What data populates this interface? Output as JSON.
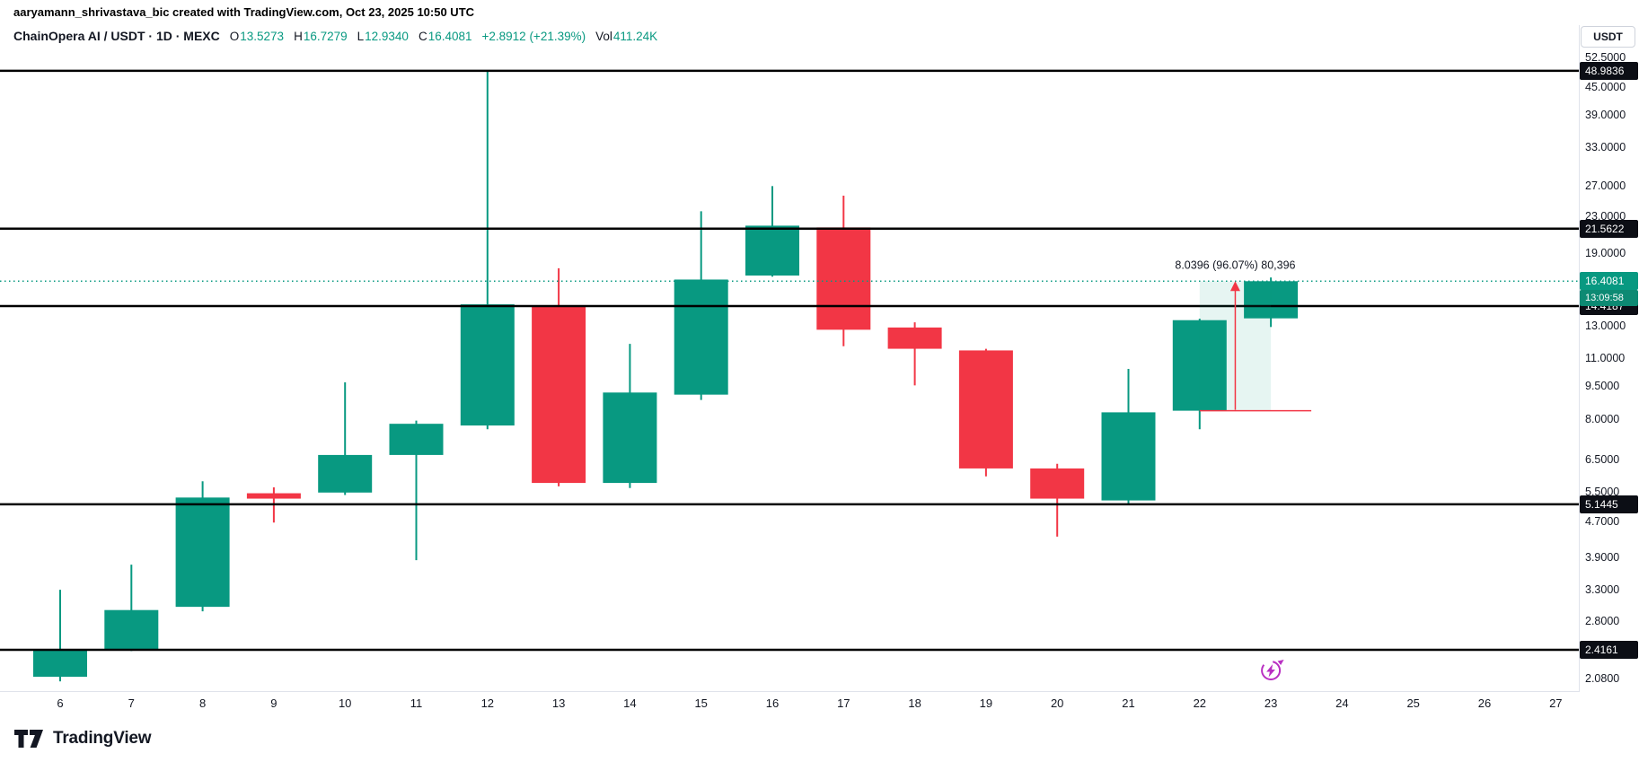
{
  "header": {
    "attribution": "aaryamann_shrivastava_bic created with TradingView.com, Oct 23, 2025 10:50 UTC",
    "symbol_title": "ChainOpera AI / USDT · 1D · MEXC",
    "ohlc": {
      "o_label": "O",
      "o_value": "13.5273",
      "h_label": "H",
      "h_value": "16.7279",
      "l_label": "L",
      "l_value": "12.9340",
      "c_label": "C",
      "c_value": "16.4081",
      "change": "+2.8912 (+21.39%)",
      "vol_label": "Vol",
      "vol_value": "411.24K"
    }
  },
  "price_axis": {
    "currency_label": "USDT",
    "ticks": [
      "52.5000",
      "45.0000",
      "39.0000",
      "33.0000",
      "27.0000",
      "23.0000",
      "19.0000",
      "13.0000",
      "11.0000",
      "9.5000",
      "8.0000",
      "6.5000",
      "5.5000",
      "4.7000",
      "3.9000",
      "3.3000",
      "2.8000",
      "2.0800"
    ],
    "level_badges": [
      "48.9836",
      "21.5622",
      "14.4187",
      "5.1445",
      "2.4161"
    ],
    "current_price_badge": "16.4081",
    "countdown": "13:09:58"
  },
  "time_axis": {
    "labels": [
      "6",
      "7",
      "8",
      "9",
      "10",
      "11",
      "12",
      "13",
      "14",
      "15",
      "16",
      "17",
      "18",
      "19",
      "20",
      "21",
      "22",
      "23",
      "24",
      "25",
      "26",
      "27"
    ]
  },
  "chart_data": {
    "type": "candlestick",
    "title": "ChainOpera AI / USDT · 1D · MEXC",
    "symbol": "ChainOpera AI / USDT",
    "interval": "1D",
    "exchange": "MEXC",
    "ylabel": "USDT",
    "y_scale": "log",
    "ylim": [
      1.949,
      62.1
    ],
    "x_visible_range": [
      6,
      27
    ],
    "grid": false,
    "candles": [
      {
        "date": 6,
        "o": 2.1,
        "h": 3.3,
        "l": 2.05,
        "c": 2.42
      },
      {
        "date": 7,
        "o": 2.42,
        "h": 3.76,
        "l": 2.4,
        "c": 2.97
      },
      {
        "date": 8,
        "o": 3.02,
        "h": 5.8,
        "l": 2.95,
        "c": 5.33
      },
      {
        "date": 9,
        "o": 5.45,
        "h": 5.62,
        "l": 4.68,
        "c": 5.3
      },
      {
        "date": 10,
        "o": 5.47,
        "h": 9.7,
        "l": 5.4,
        "c": 6.65
      },
      {
        "date": 11,
        "o": 6.65,
        "h": 7.95,
        "l": 3.85,
        "c": 7.82
      },
      {
        "date": 12,
        "o": 7.75,
        "h": 48.9836,
        "l": 7.6,
        "c": 14.55
      },
      {
        "date": 13,
        "o": 14.45,
        "h": 17.55,
        "l": 5.65,
        "c": 5.75
      },
      {
        "date": 14,
        "o": 5.75,
        "h": 11.85,
        "l": 5.6,
        "c": 9.2
      },
      {
        "date": 15,
        "o": 9.1,
        "h": 23.6,
        "l": 8.85,
        "c": 16.55
      },
      {
        "date": 16,
        "o": 16.9,
        "h": 26.9,
        "l": 16.8,
        "c": 21.9
      },
      {
        "date": 17,
        "o": 21.7,
        "h": 25.6,
        "l": 11.7,
        "c": 12.75
      },
      {
        "date": 18,
        "o": 12.9,
        "h": 13.25,
        "l": 9.55,
        "c": 11.55
      },
      {
        "date": 19,
        "o": 11.45,
        "h": 11.55,
        "l": 5.95,
        "c": 6.2
      },
      {
        "date": 20,
        "o": 6.2,
        "h": 6.35,
        "l": 4.35,
        "c": 5.3
      },
      {
        "date": 21,
        "o": 5.25,
        "h": 10.4,
        "l": 5.15,
        "c": 8.3
      },
      {
        "date": 22,
        "o": 8.37,
        "h": 13.5,
        "l": 7.6,
        "c": 13.4
      },
      {
        "date": 23,
        "o": 13.5273,
        "h": 16.7279,
        "l": 12.934,
        "c": 16.4081
      }
    ],
    "horizontal_levels": [
      48.9836,
      21.5622,
      14.4187,
      5.1445,
      2.4161
    ],
    "current_price": 16.4081,
    "price_range_tool": {
      "from_date": 22,
      "to_date": 23,
      "from_price": 8.3685,
      "to_price": 16.4081,
      "label": "8.0396 (96.07%) 80,396"
    },
    "event_marker": {
      "date": 23,
      "name": "lightning-event"
    }
  },
  "colors": {
    "up": "#089981",
    "down": "#f23645",
    "level_line": "#000000",
    "current_price_line": "#089981",
    "axis_text": "#131722",
    "level_badge_bg": "#0c0e15",
    "current_badge_bg": "#089981",
    "countdown_badge_bg": "#0d8a73",
    "range_fill": "rgba(8,153,129,0.10)",
    "range_line": "#f23645",
    "event": "#b92fc2",
    "separator": "#e0e3eb"
  },
  "footer": {
    "logo_text": "TradingView"
  }
}
